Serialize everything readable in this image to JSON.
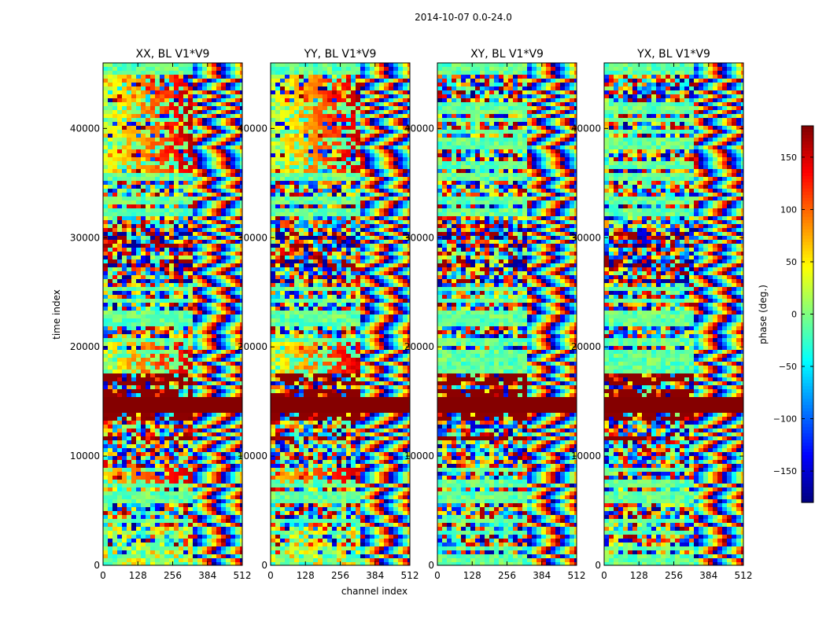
{
  "suptitle": "2014-10-07 0.0-24.0",
  "colors": {
    "jet": [
      "#00007f",
      "#0000ff",
      "#007fff",
      "#00ffff",
      "#7fff7f",
      "#ffff00",
      "#ff7f00",
      "#ff0000",
      "#7f0000"
    ],
    "axis": "#000000",
    "background": "#ffffff"
  },
  "chart_data": {
    "type": "heatmap",
    "xlabel": "channel index",
    "ylabel": "time index",
    "xlim": [
      0,
      512
    ],
    "ylim": [
      0,
      46000
    ],
    "xticks": [
      0,
      128,
      256,
      384,
      512
    ],
    "yticks": [
      0,
      10000,
      20000,
      30000,
      40000
    ],
    "panels": [
      {
        "title": "XX, BL V1*V9",
        "baseline": "V1*V9",
        "polarization": "XX"
      },
      {
        "title": "YY, BL V1*V9",
        "baseline": "V1*V9",
        "polarization": "YY"
      },
      {
        "title": "XY, BL V1*V9",
        "baseline": "V1*V9",
        "polarization": "XY"
      },
      {
        "title": "YX, BL V1*V9",
        "baseline": "V1*V9",
        "polarization": "YX"
      }
    ],
    "value_label": "phase (deg.)",
    "value_range": [
      -180,
      180
    ],
    "colorbar_ticks": [
      150,
      100,
      50,
      0,
      -50,
      -100,
      -150
    ],
    "colormap": "jet"
  }
}
